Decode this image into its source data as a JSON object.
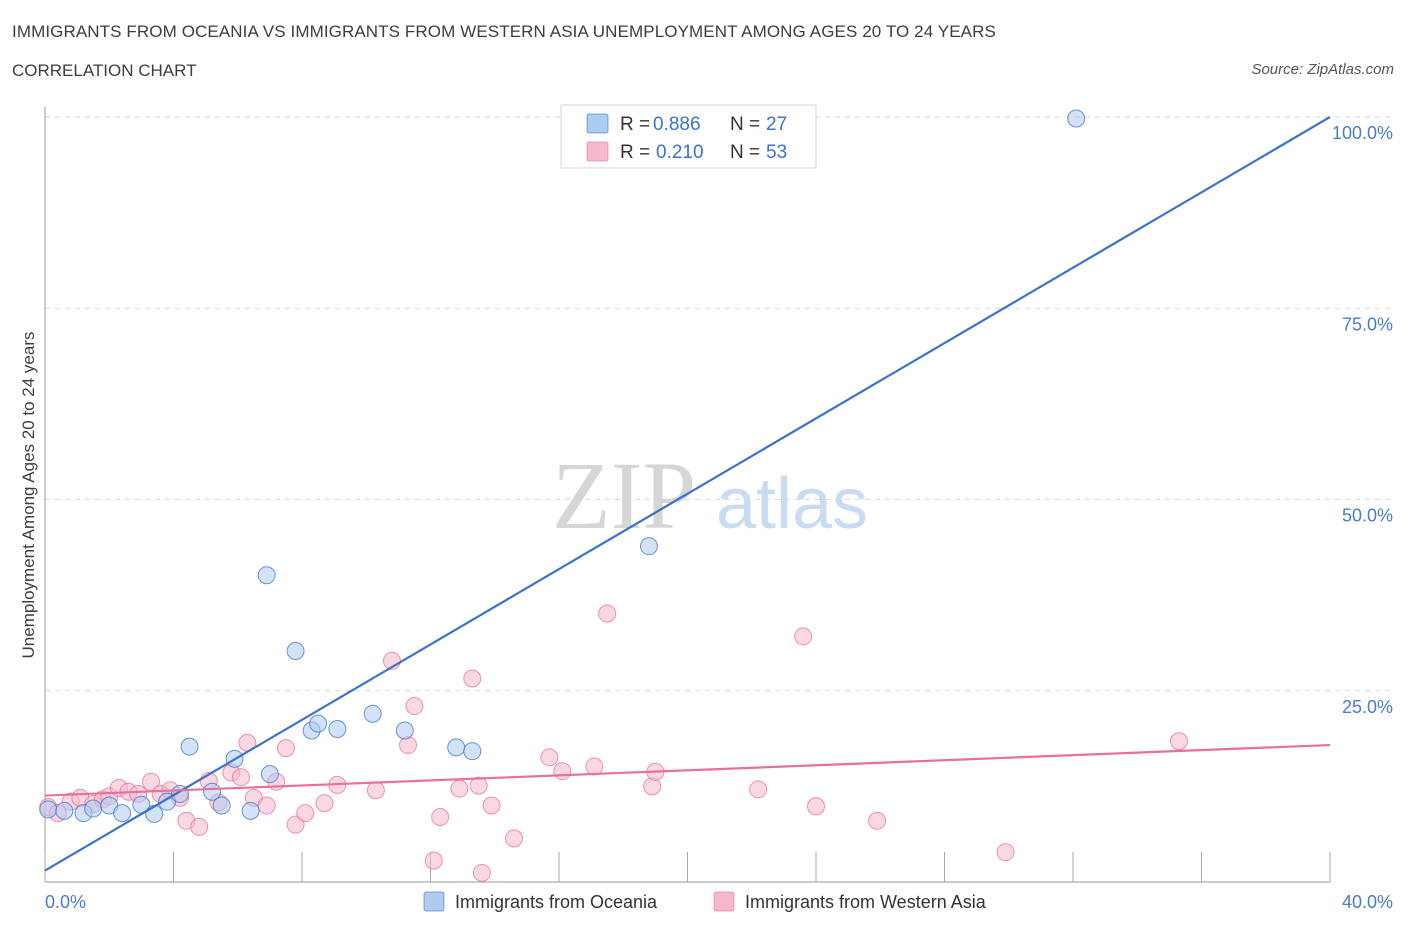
{
  "header": {
    "title": "IMMIGRANTS FROM OCEANIA VS IMMIGRANTS FROM WESTERN ASIA UNEMPLOYMENT AMONG AGES 20 TO 24 YEARS",
    "subtitle": "CORRELATION CHART",
    "source": "Source: ZipAtlas.com"
  },
  "watermark": {
    "zip": "ZIP",
    "atlas": "atlas"
  },
  "colors": {
    "blue": "#3b73c8",
    "blue_fill": "#aecbf0",
    "pink": "#e8709a",
    "pink_fill": "#f6b8cc",
    "grid": "#d9d9d9",
    "tick_text": "#4a7cc9"
  },
  "chart_data": {
    "type": "scatter",
    "title": "IMMIGRANTS FROM OCEANIA VS IMMIGRANTS FROM WESTERN ASIA UNEMPLOYMENT AMONG AGES 20 TO 24 YEARS",
    "xlabel": "",
    "ylabel": "Unemployment Among Ages 20 to 24 years",
    "xlim": [
      0,
      40
    ],
    "ylim": [
      0,
      100
    ],
    "x_tick_labels": [
      "0.0%",
      "40.0%"
    ],
    "y_ticks": [
      25,
      50,
      75,
      100
    ],
    "y_tick_labels": [
      "25.0%",
      "50.0%",
      "75.0%",
      "100.0%"
    ],
    "grid": true,
    "legend": {
      "placement": "top-center",
      "entries": [
        {
          "series": "Immigrants from Oceania",
          "r_label": "R =",
          "r": "0.886",
          "n_label": "N =",
          "n": "27"
        },
        {
          "series": "Immigrants from Western Asia",
          "r_label": "R =",
          "r": "0.210",
          "n_label": "N =",
          "n": "53"
        }
      ]
    },
    "series": [
      {
        "name": "Immigrants from Oceania",
        "color": "blue",
        "trend": {
          "x": [
            0,
            40
          ],
          "y": [
            1.5,
            100
          ]
        },
        "points": [
          [
            0.1,
            9.5
          ],
          [
            0.6,
            9.3
          ],
          [
            1.2,
            9.0
          ],
          [
            1.5,
            9.6
          ],
          [
            2.0,
            10.0
          ],
          [
            2.4,
            9.0
          ],
          [
            3.0,
            10.1
          ],
          [
            3.4,
            8.9
          ],
          [
            3.8,
            10.5
          ],
          [
            4.2,
            11.5
          ],
          [
            4.5,
            17.7
          ],
          [
            5.2,
            11.8
          ],
          [
            5.5,
            10.0
          ],
          [
            5.9,
            16.1
          ],
          [
            6.4,
            9.3
          ],
          [
            7.0,
            14.1
          ],
          [
            6.9,
            40.1
          ],
          [
            7.8,
            30.2
          ],
          [
            8.3,
            19.8
          ],
          [
            8.5,
            20.7
          ],
          [
            9.1,
            20.0
          ],
          [
            10.2,
            22.0
          ],
          [
            11.2,
            19.8
          ],
          [
            12.8,
            17.6
          ],
          [
            13.3,
            17.1
          ],
          [
            18.8,
            43.9
          ],
          [
            32.1,
            99.8
          ]
        ]
      },
      {
        "name": "Immigrants from Western Asia",
        "color": "pink",
        "trend": {
          "x": [
            0,
            40
          ],
          "y": [
            11.3,
            17.9
          ]
        },
        "points": [
          [
            0.1,
            9.8
          ],
          [
            0.4,
            9.0
          ],
          [
            0.8,
            10.5
          ],
          [
            1.1,
            11.0
          ],
          [
            1.5,
            10.2
          ],
          [
            1.8,
            10.8
          ],
          [
            2.0,
            11.2
          ],
          [
            2.3,
            12.3
          ],
          [
            2.6,
            11.8
          ],
          [
            2.9,
            11.5
          ],
          [
            3.3,
            13.1
          ],
          [
            3.6,
            11.5
          ],
          [
            3.9,
            12.0
          ],
          [
            4.2,
            11.0
          ],
          [
            4.4,
            8.0
          ],
          [
            4.8,
            7.2
          ],
          [
            5.1,
            13.2
          ],
          [
            5.4,
            10.4
          ],
          [
            5.8,
            14.3
          ],
          [
            6.1,
            13.7
          ],
          [
            6.3,
            18.2
          ],
          [
            6.5,
            11.0
          ],
          [
            6.9,
            10.0
          ],
          [
            7.2,
            13.1
          ],
          [
            7.5,
            17.5
          ],
          [
            7.8,
            7.5
          ],
          [
            8.1,
            9.0
          ],
          [
            8.7,
            10.3
          ],
          [
            9.1,
            12.7
          ],
          [
            10.3,
            12.0
          ],
          [
            10.8,
            28.9
          ],
          [
            11.3,
            17.9
          ],
          [
            11.5,
            23.0
          ],
          [
            12.1,
            2.8
          ],
          [
            12.3,
            8.5
          ],
          [
            12.9,
            12.2
          ],
          [
            13.3,
            26.6
          ],
          [
            13.5,
            12.6
          ],
          [
            13.9,
            10.0
          ],
          [
            14.6,
            5.7
          ],
          [
            13.6,
            1.2
          ],
          [
            15.7,
            16.3
          ],
          [
            16.1,
            14.5
          ],
          [
            17.1,
            15.1
          ],
          [
            17.5,
            35.1
          ],
          [
            18.9,
            12.5
          ],
          [
            19.0,
            14.4
          ],
          [
            22.2,
            12.1
          ],
          [
            24.0,
            9.9
          ],
          [
            23.6,
            32.1
          ],
          [
            25.9,
            8.0
          ],
          [
            29.9,
            3.9
          ],
          [
            35.3,
            18.4
          ]
        ]
      }
    ]
  }
}
